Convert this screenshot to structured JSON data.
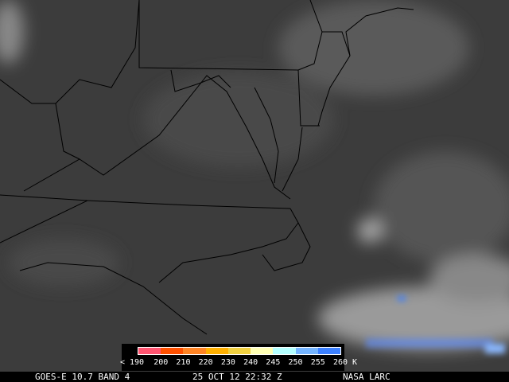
{
  "legend": {
    "segments": [
      {
        "from": "< 190",
        "to": "200",
        "color": "#ff5470"
      },
      {
        "from": "200",
        "to": "210",
        "color": "#ff5000"
      },
      {
        "from": "210",
        "to": "220",
        "color": "#ff8424"
      },
      {
        "from": "220",
        "to": "230",
        "color": "#ffb000"
      },
      {
        "from": "230",
        "to": "240",
        "color": "#f0d040"
      },
      {
        "from": "240",
        "to": "245",
        "color": "#ffffb4"
      },
      {
        "from": "245",
        "to": "250",
        "color": "#b4ffff"
      },
      {
        "from": "250",
        "to": "255",
        "color": "#74b4ff"
      },
      {
        "from": "255",
        "to": "260",
        "color": "#3c80ff"
      }
    ],
    "ticks": [
      "< 190",
      "200",
      "210",
      "220",
      "230",
      "240",
      "245",
      "250",
      "255",
      "260 K"
    ]
  },
  "status": {
    "satellite": "GOES-E 10.7 BAND 4",
    "datetime": "25 OCT 12 22:32 Z",
    "source": "NASA LARC"
  },
  "colors": {
    "land_gray": "#3a3a3a",
    "cloud": "#d8d8d8",
    "cold_cloud": "#3c80ff",
    "borders": "#000000"
  }
}
